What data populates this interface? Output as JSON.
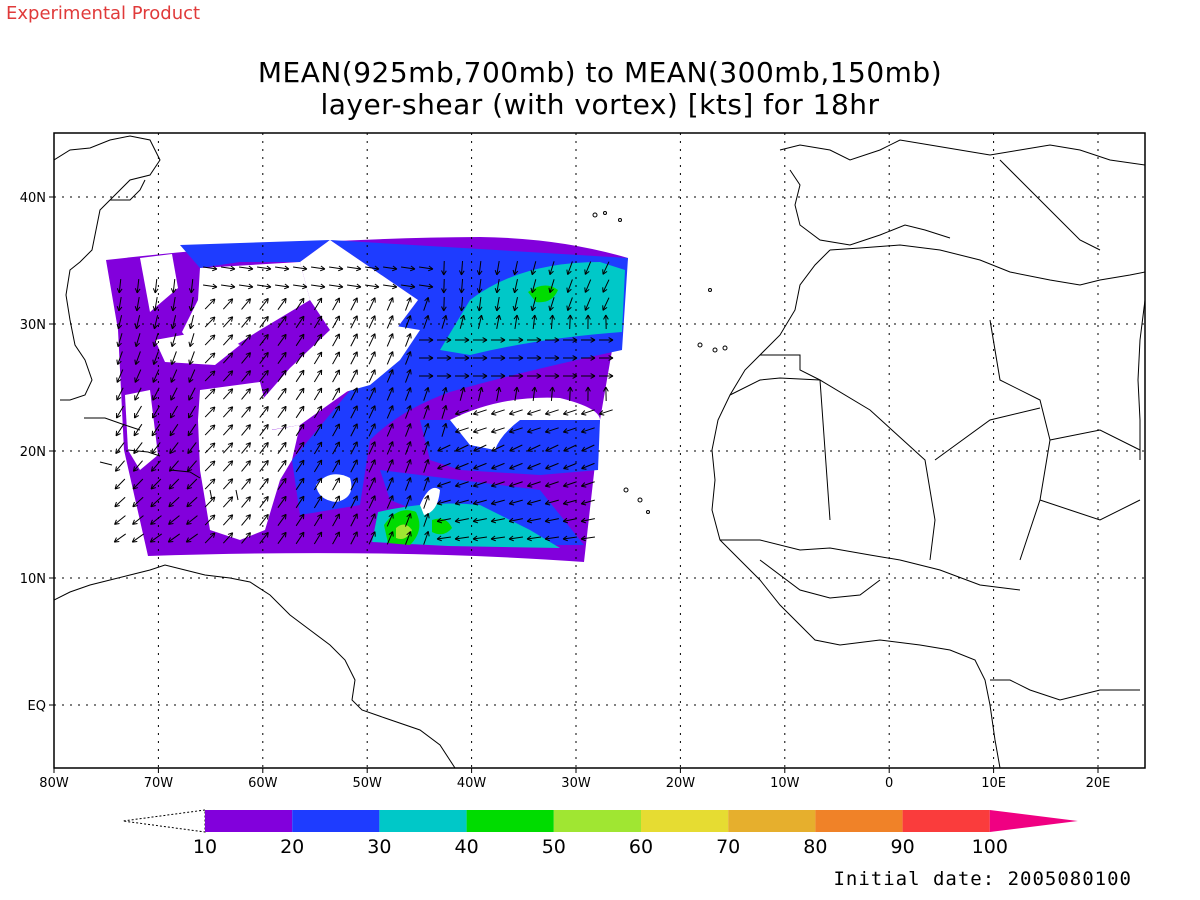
{
  "header": {
    "product_label": "Experimental Product",
    "title_line1": "MEAN(925mb,700mb) to MEAN(300mb,150mb)",
    "title_line2": "layer-shear (with vortex) [kts] for 18hr"
  },
  "footer": {
    "initial_date": "Initial date: 2005080100"
  },
  "map": {
    "lon_ticks": [
      "80W",
      "70W",
      "60W",
      "50W",
      "40W",
      "30W",
      "20W",
      "10W",
      "0",
      "10E",
      "20E"
    ],
    "lat_ticks": [
      "40N",
      "30N",
      "20N",
      "10N",
      "EQ"
    ]
  },
  "colorbar": {
    "labels": [
      "10",
      "20",
      "30",
      "40",
      "50",
      "60",
      "70",
      "80",
      "90",
      "100"
    ],
    "colors": [
      "#8200dc",
      "#1e3cff",
      "#00c8c8",
      "#00dc00",
      "#a0e632",
      "#e6dc32",
      "#e6af2d",
      "#f08228",
      "#fa3c3c",
      "#f00082"
    ]
  },
  "colors": {
    "kt10_20": "#8200dc",
    "kt20_30": "#1e3cff",
    "kt30_40": "#00c8c8",
    "kt40_50": "#00dc00",
    "kt50_60": "#a0e632"
  }
}
